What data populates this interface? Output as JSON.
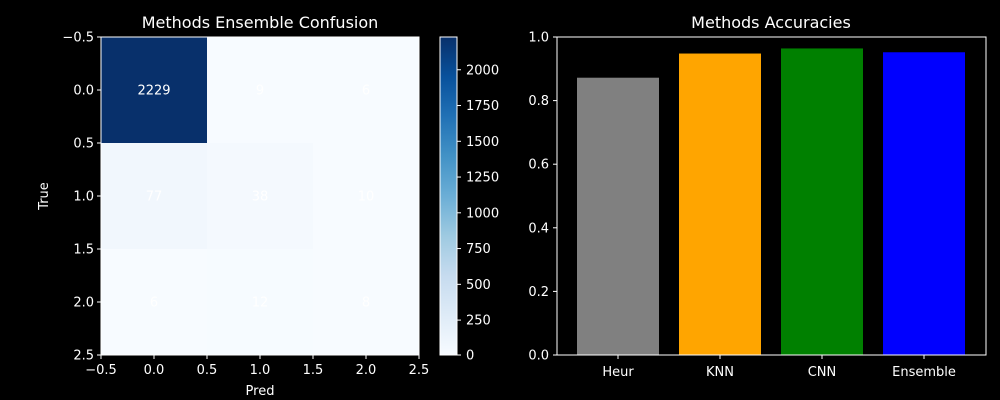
{
  "figure": {
    "background": "#000000"
  },
  "chart_data": [
    {
      "type": "heatmap",
      "title": "Methods Ensemble Confusion",
      "xlabel": "Pred",
      "ylabel": "True",
      "matrix": [
        [
          2229,
          9,
          6
        ],
        [
          77,
          38,
          10
        ],
        [
          6,
          12,
          8
        ]
      ],
      "xlim": [
        -0.5,
        2.5
      ],
      "ylim": [
        2.5,
        -0.5
      ],
      "xticks": [
        "−0.5",
        "0.0",
        "0.5",
        "1.0",
        "1.5",
        "2.0",
        "2.5"
      ],
      "yticks": [
        "−0.5",
        "0.0",
        "0.5",
        "1.0",
        "1.5",
        "2.0",
        "2.5"
      ],
      "colormap": "Blues",
      "color_low": "#f7fbff",
      "color_high": "#08306b",
      "vmin": 6,
      "vmax": 2229,
      "colorbar_ticks": [
        "0",
        "250",
        "500",
        "750",
        "1000",
        "1250",
        "1500",
        "1750",
        "2000"
      ],
      "label_color": "#ffffff"
    },
    {
      "type": "bar",
      "title": "Methods Accuracies",
      "categories": [
        "Heur",
        "KNN",
        "CNN",
        "Ensemble"
      ],
      "values": [
        0.872,
        0.948,
        0.964,
        0.952
      ],
      "colors": [
        "#808080",
        "#ffa500",
        "#008000",
        "#0000ff"
      ],
      "ylim": [
        0,
        1.0
      ],
      "yticks": [
        "0.0",
        "0.2",
        "0.4",
        "0.6",
        "0.8",
        "1.0"
      ]
    }
  ]
}
